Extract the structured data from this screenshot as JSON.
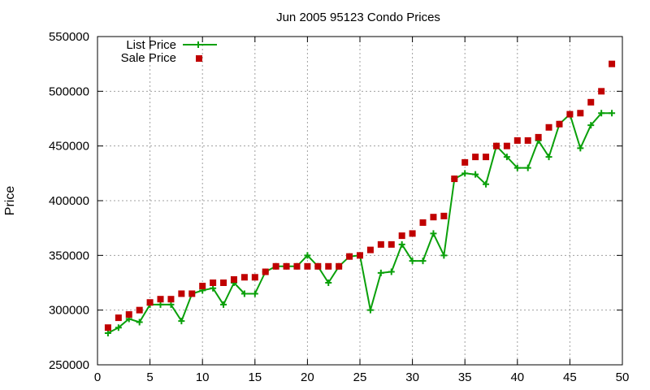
{
  "chart_data": {
    "type": "line",
    "title": "Jun 2005 95123 Condo Prices",
    "xlabel": "",
    "ylabel": "Price",
    "xlim": [
      0,
      50
    ],
    "ylim": [
      250000,
      550000
    ],
    "xticks": [
      0,
      5,
      10,
      15,
      20,
      25,
      30,
      35,
      40,
      45,
      50
    ],
    "yticks": [
      250000,
      300000,
      350000,
      400000,
      450000,
      500000,
      550000
    ],
    "grid": true,
    "legend_position": "top-left",
    "series": [
      {
        "name": "List Price",
        "style": "line-with-plus-markers",
        "color": "#0aa00a",
        "x": [
          1,
          2,
          3,
          4,
          5,
          6,
          7,
          8,
          9,
          10,
          11,
          12,
          13,
          14,
          15,
          16,
          17,
          18,
          19,
          20,
          21,
          22,
          23,
          24,
          25,
          26,
          27,
          28,
          29,
          30,
          31,
          32,
          33,
          34,
          35,
          36,
          37,
          38,
          39,
          40,
          41,
          42,
          43,
          44,
          45,
          46,
          47,
          48,
          49
        ],
        "values": [
          279000,
          284000,
          292000,
          289000,
          305000,
          305000,
          305000,
          290000,
          315000,
          318000,
          320000,
          305000,
          325000,
          315000,
          315000,
          335000,
          340000,
          340000,
          340000,
          350000,
          340000,
          325000,
          340000,
          349000,
          350000,
          300000,
          334000,
          335000,
          360000,
          345000,
          345000,
          370000,
          350000,
          420000,
          425000,
          424000,
          415000,
          450000,
          440000,
          430000,
          430000,
          455000,
          440000,
          470000,
          479000,
          448000,
          469000,
          480000,
          480000
        ]
      },
      {
        "name": "Sale Price",
        "style": "square-markers",
        "color": "#c00000",
        "x": [
          1,
          2,
          3,
          4,
          5,
          6,
          7,
          8,
          9,
          10,
          11,
          12,
          13,
          14,
          15,
          16,
          17,
          18,
          19,
          20,
          21,
          22,
          23,
          24,
          25,
          26,
          27,
          28,
          29,
          30,
          31,
          32,
          33,
          34,
          35,
          36,
          37,
          38,
          39,
          40,
          41,
          42,
          43,
          44,
          45,
          46,
          47,
          48,
          49
        ],
        "values": [
          284000,
          293000,
          296000,
          300000,
          307000,
          310000,
          310000,
          315000,
          315000,
          322000,
          325000,
          325000,
          328000,
          330000,
          330000,
          335000,
          340000,
          340000,
          340000,
          340000,
          340000,
          340000,
          340000,
          349000,
          350000,
          355000,
          360000,
          360000,
          368000,
          370000,
          380000,
          385000,
          386000,
          420000,
          435000,
          440000,
          440000,
          450000,
          450000,
          455000,
          455000,
          458000,
          467000,
          470000,
          479000,
          480000,
          490000,
          500000,
          525000
        ]
      }
    ]
  }
}
